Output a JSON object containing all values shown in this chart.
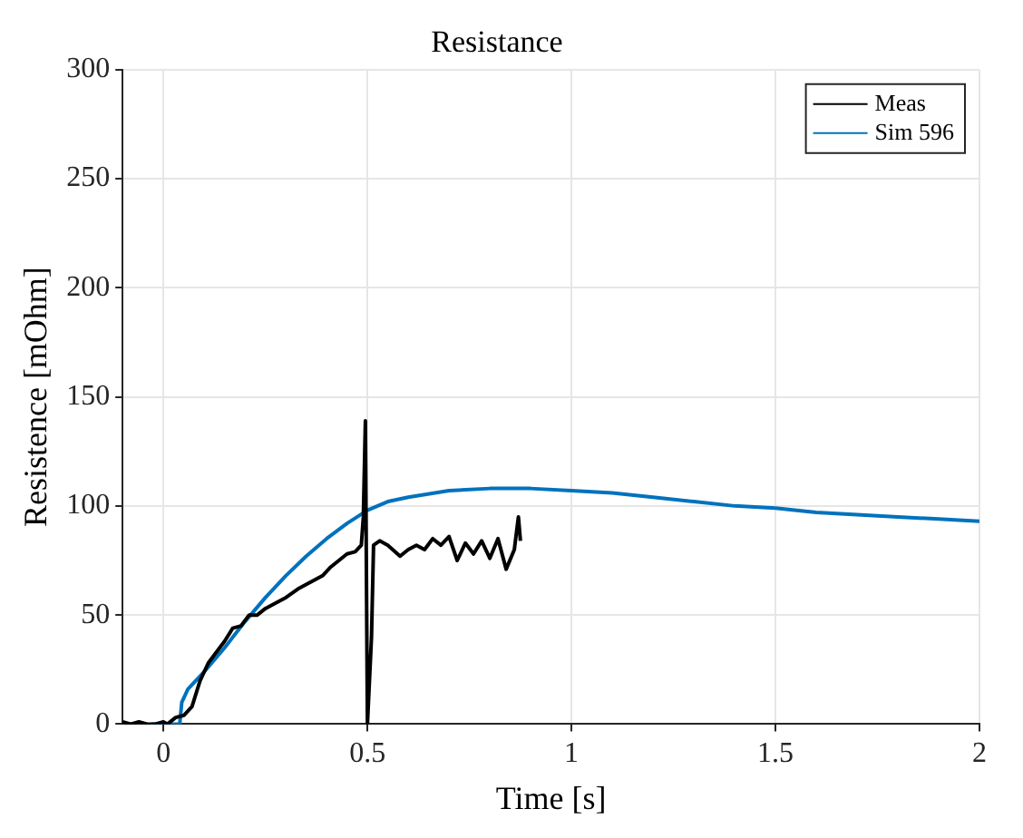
{
  "chart_data": {
    "type": "line",
    "title": "Resistance",
    "xlabel": "Time [s]",
    "ylabel": "Resistence [mOhm]",
    "xlim": [
      -0.1,
      2
    ],
    "xticks": [
      0,
      0.5,
      1,
      1.5,
      2
    ],
    "ylim": [
      0,
      300
    ],
    "yticks": [
      0,
      50,
      100,
      150,
      200,
      250,
      300
    ],
    "grid": true,
    "legend": "top right",
    "marker": "none",
    "line_style": "solid",
    "series": [
      {
        "name": "Meas",
        "color": "#000000",
        "x": [
          -0.1,
          -0.08,
          -0.06,
          -0.04,
          -0.02,
          0,
          0.01,
          0.03,
          0.05,
          0.07,
          0.09,
          0.11,
          0.13,
          0.15,
          0.17,
          0.19,
          0.21,
          0.23,
          0.25,
          0.28,
          0.3,
          0.33,
          0.36,
          0.39,
          0.41,
          0.43,
          0.45,
          0.47,
          0.485,
          0.49,
          0.495,
          0.5,
          0.51,
          0.515,
          0.53,
          0.55,
          0.58,
          0.6,
          0.62,
          0.64,
          0.66,
          0.68,
          0.7,
          0.72,
          0.74,
          0.76,
          0.78,
          0.8,
          0.82,
          0.84,
          0.86,
          0.87,
          0.875
        ],
        "values": [
          1,
          0,
          1,
          0,
          0,
          1,
          0,
          3,
          4,
          8,
          20,
          28,
          33,
          38,
          44,
          45,
          50,
          50,
          53,
          56,
          58,
          62,
          65,
          68,
          72,
          75,
          78,
          79,
          82,
          95,
          139,
          0,
          40,
          82,
          84,
          82,
          77,
          80,
          82,
          80,
          85,
          82,
          86,
          75,
          83,
          78,
          84,
          76,
          85,
          71,
          80,
          95,
          84
        ]
      },
      {
        "name": "Sim 596",
        "color": "#0072bd",
        "x": [
          -0.03,
          0.04,
          0.045,
          0.06,
          0.1,
          0.15,
          0.2,
          0.25,
          0.3,
          0.35,
          0.4,
          0.45,
          0.5,
          0.55,
          0.6,
          0.7,
          0.8,
          0.9,
          1.0,
          1.1,
          1.2,
          1.3,
          1.4,
          1.5,
          1.6,
          1.7,
          1.8,
          1.9,
          2.0
        ],
        "values": [
          0,
          0,
          10,
          16,
          24,
          35,
          47,
          58,
          68,
          77,
          85,
          92,
          98,
          102,
          104,
          107,
          108,
          108,
          107,
          106,
          104,
          102,
          100,
          99,
          97,
          96,
          95,
          94,
          93
        ]
      }
    ]
  }
}
